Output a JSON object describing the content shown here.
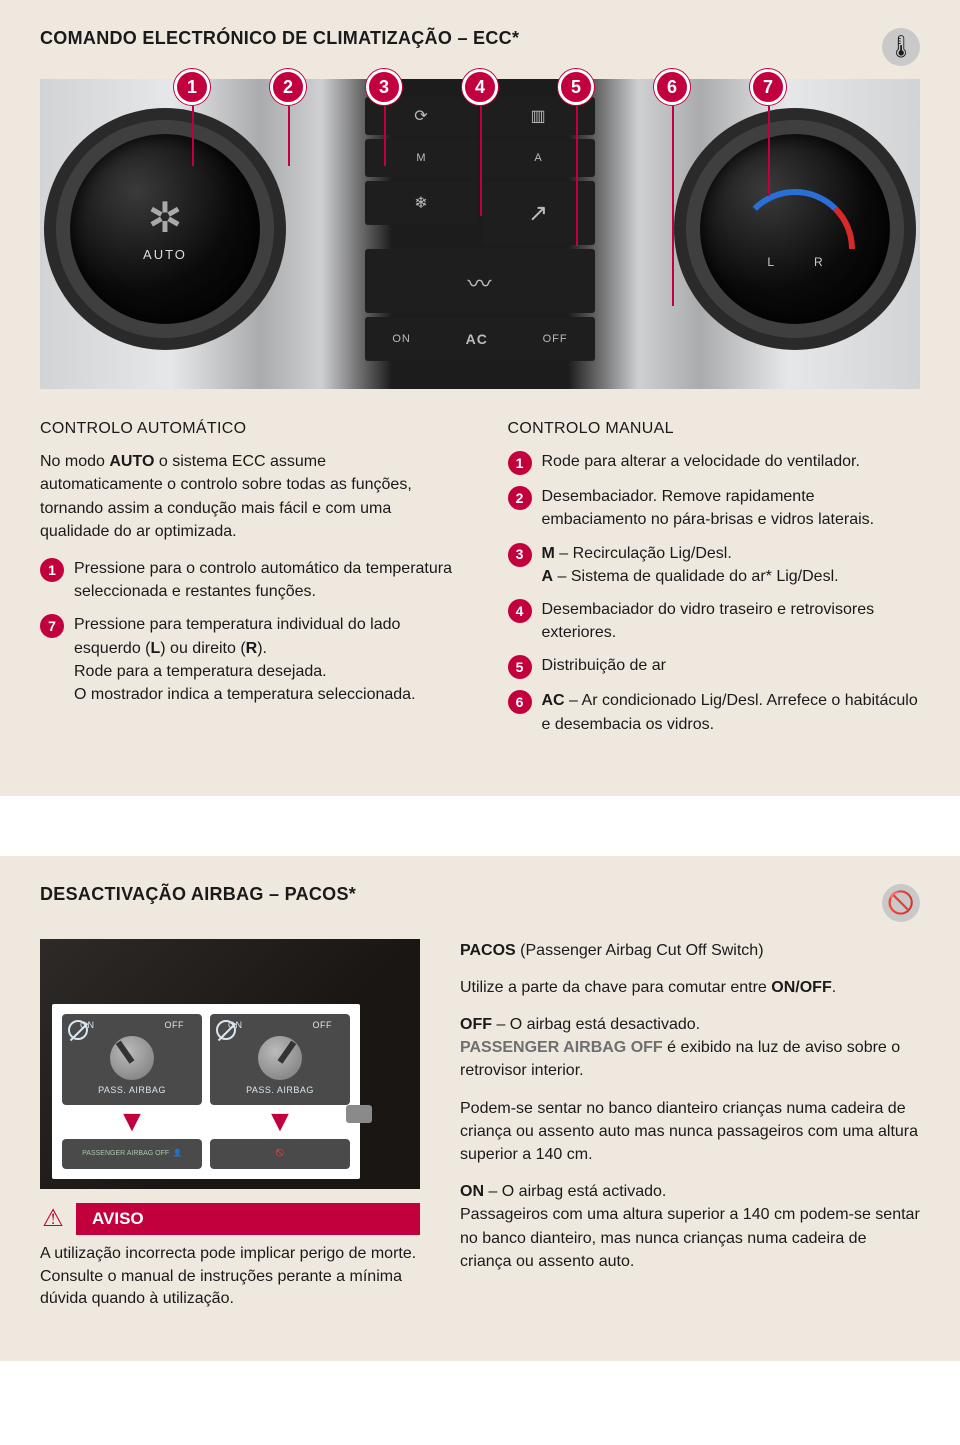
{
  "section1": {
    "title": "COMANDO ELECTRÓNICO DE CLIMATIZAÇÃO – ECC*",
    "corner_icon_glyph": "🌡",
    "callout_labels": [
      "1",
      "2",
      "3",
      "4",
      "5",
      "6",
      "7"
    ],
    "dial_left_label": "AUTO",
    "dial_right_L": "L",
    "dial_right_R": "R",
    "btn_M": "M",
    "btn_A": "A",
    "btn_recirc": "⟳",
    "btn_defrostF": "❄",
    "btn_defrostR": "▥",
    "btn_ac_on": "ON",
    "btn_ac_off": "OFF",
    "btn_ac": "AC",
    "auto": {
      "heading": "CONTROLO AUTOMÁTICO",
      "intro_pre": "No modo ",
      "intro_bold": "AUTO",
      "intro_post": " o sistema ECC assume automaticamente o controlo sobre todas as funções, tornando assim a condução mais fácil e com uma qualidade do ar optimizada.",
      "n1": "1",
      "n1_text": "Pressione para o controlo automático da temperatura seleccionada e restantes funções.",
      "n7": "7",
      "n7_line1_pre": "Pressione para temperatura individual do lado esquerdo (",
      "n7_L": "L",
      "n7_mid": ") ou direito (",
      "n7_R": "R",
      "n7_end": ").",
      "n7_line2": "Rode para a temperatura desejada.",
      "n7_line3": "O mostrador indica a temperatura seleccionada."
    },
    "manual": {
      "heading": "CONTROLO MANUAL",
      "n1": "1",
      "n1_text": "Rode para alterar a velocidade do ventilador.",
      "n2": "2",
      "n2_text": "Desembaciador. Remove rapidamente embaciamento no pára-brisas e vidros laterais.",
      "n3": "3",
      "n3_l1_b": "M",
      "n3_l1_t": " – Recirculação Lig/Desl.",
      "n3_l2_b": "A",
      "n3_l2_t": " – Sistema de qualidade do ar* Lig/Desl.",
      "n4": "4",
      "n4_text": "Desembaciador do vidro traseiro e retrovisores exteriores.",
      "n5": "5",
      "n5_text": "Distribuição de ar",
      "n6": "6",
      "n6_b": "AC",
      "n6_t": " – Ar condicionado Lig/Desl. Arrefece o habitáculo e desembacia os vidros."
    }
  },
  "section2": {
    "title": "DESACTIVAÇÃO AIRBAG – PACOS*",
    "corner_icon_glyph": "🚫",
    "sticker_on": "ON",
    "sticker_off": "OFF",
    "sticker_pass": "PASS. AIRBAG",
    "sticker_bot1": "PASSENGER AIRBAG OFF",
    "aviso_label": "AVISO",
    "aviso_text": "A utilização incorrecta pode implicar perigo de morte. Consulte o manual de instruções perante a mínima dúvida quando à utilização.",
    "p1_b": "PACOS",
    "p1_t": " (Passenger Airbag Cut Off Switch)",
    "p2_pre": "Utilize a parte da chave para comutar entre ",
    "p2_b": "ON/OFF",
    "p2_post": ".",
    "p3_b": "OFF",
    "p3_t": " – O airbag está desactivado.",
    "p4_g": "PASSENGER AIRBAG OFF",
    "p4_t": " é exibido na luz de aviso sobre o retrovisor interior.",
    "p5": "Podem-se sentar no banco dianteiro crianças numa cadeira de criança ou assento auto mas nunca passageiros com uma altura superior a 140 cm.",
    "p6_b": "ON",
    "p6_t": " – O airbag está activado.",
    "p7": "Passageiros com uma altura superior a 140 cm podem-se sentar no banco dianteiro, mas nunca crianças numa cadeira de criança ou assento auto."
  },
  "colors": {
    "accent": "#c2003e",
    "panel_bg": "#efe8df"
  }
}
